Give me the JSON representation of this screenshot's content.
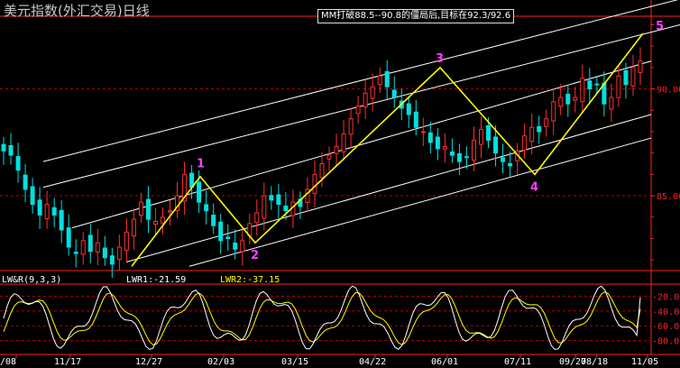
{
  "window": {
    "title": "美元指数(外汇交易)日线",
    "annotation": "MM打破88.5--90.8的僵局后,目标在92.3/92.6"
  },
  "colors": {
    "background": "#000000",
    "axis": "#ff2020",
    "grid": "#c00000",
    "candle_up": "#ff3030",
    "candle_down": "#00e0e0",
    "channel": "#ffffff",
    "wave": "#ffff00",
    "wave_label": "#ff40ff",
    "lwr1": "#ffffff",
    "lwr2": "#ffff00",
    "date_label": "#ffffff"
  },
  "chart_data": [
    {
      "type": "candlestick",
      "title": "美元指数(外汇交易)日线",
      "y_ticks": [
        "90.00",
        "85.00"
      ],
      "ylim": [
        81.5,
        93.4
      ],
      "x_ticks": [
        "/08",
        "11/17",
        "12/27",
        "02/03",
        "03/15",
        "04/22",
        "06/01",
        "07/11",
        "08/18",
        "09/27",
        "11/05"
      ],
      "series_close": [
        87.1,
        86.9,
        86.2,
        85.3,
        84.6,
        84.1,
        84.6,
        84.1,
        83.4,
        82.6,
        82.3,
        82.9,
        82.4,
        82.8,
        82.1,
        81.8,
        82.6,
        83.3,
        83.9,
        84.7,
        83.9,
        83.8,
        84.0,
        84.3,
        85.0,
        86.0,
        85.4,
        84.7,
        84.3,
        83.6,
        82.9,
        83.0,
        82.5,
        82.9,
        83.7,
        84.2,
        85.0,
        84.8,
        84.6,
        84.3,
        84.7,
        84.5,
        85.3,
        86.0,
        86.5,
        86.9,
        87.3,
        87.9,
        88.6,
        89.2,
        89.8,
        90.1,
        90.6,
        90.1,
        89.6,
        89.1,
        88.8,
        88.2,
        88.0,
        87.5,
        87.2,
        87.3,
        86.9,
        86.6,
        86.8,
        87.6,
        88.1,
        87.6,
        87.0,
        86.6,
        86.4,
        87.1,
        87.8,
        88.2,
        88.0,
        88.6,
        89.4,
        89.6,
        89.3,
        89.6,
        90.5,
        90.0,
        90.2,
        89.3,
        89.6,
        90.6,
        90.2,
        91.0,
        91.3
      ],
      "waves": [
        {
          "label": "1",
          "price": 85.9
        },
        {
          "label": "2",
          "price": 82.8
        },
        {
          "label": "3",
          "price": 91.0
        },
        {
          "label": "4",
          "price": 86.0
        },
        {
          "label": "5",
          "price": 92.6
        }
      ],
      "wave_start_price": 81.7
    },
    {
      "type": "line",
      "title": "LW&R(9,3,3)",
      "y_ticks": [
        "-20.00",
        "-40.00",
        "-60.00",
        "-80.00"
      ],
      "ylim": [
        -100,
        0
      ],
      "series": [
        {
          "name": "LWR1",
          "last_value": -21.59
        },
        {
          "name": "LWR2",
          "last_value": -37.15
        }
      ],
      "legend": [
        "LWR1:-21.59",
        "LWR2:-37.15"
      ]
    }
  ]
}
